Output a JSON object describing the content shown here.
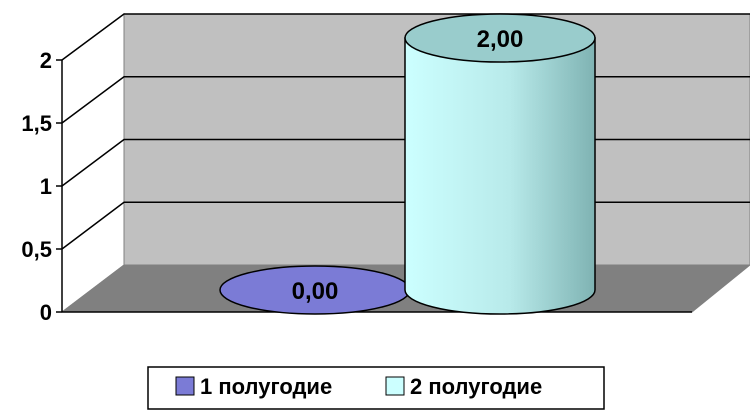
{
  "chart_data": {
    "type": "bar",
    "style": "3d-cylinder",
    "title": "",
    "xlabel": "",
    "ylabel": "",
    "series": [
      {
        "name": "1 полугодие",
        "values": [
          0
        ],
        "data_label": "0,00",
        "color": "#7B7BD6"
      },
      {
        "name": "2 полугодие",
        "values": [
          2
        ],
        "data_label": "2,00",
        "color": "#CCFFFF"
      }
    ],
    "ylim": [
      0,
      2
    ],
    "yticks": [
      0,
      0.5,
      1,
      1.5,
      2
    ],
    "ytick_labels": [
      "0",
      "0,5",
      "1",
      "1,5",
      "2"
    ],
    "grid": true,
    "legend": "bottom",
    "colors": {
      "wall": "#C0C0C0",
      "floor": "#808080",
      "gridline": "#000000"
    }
  }
}
